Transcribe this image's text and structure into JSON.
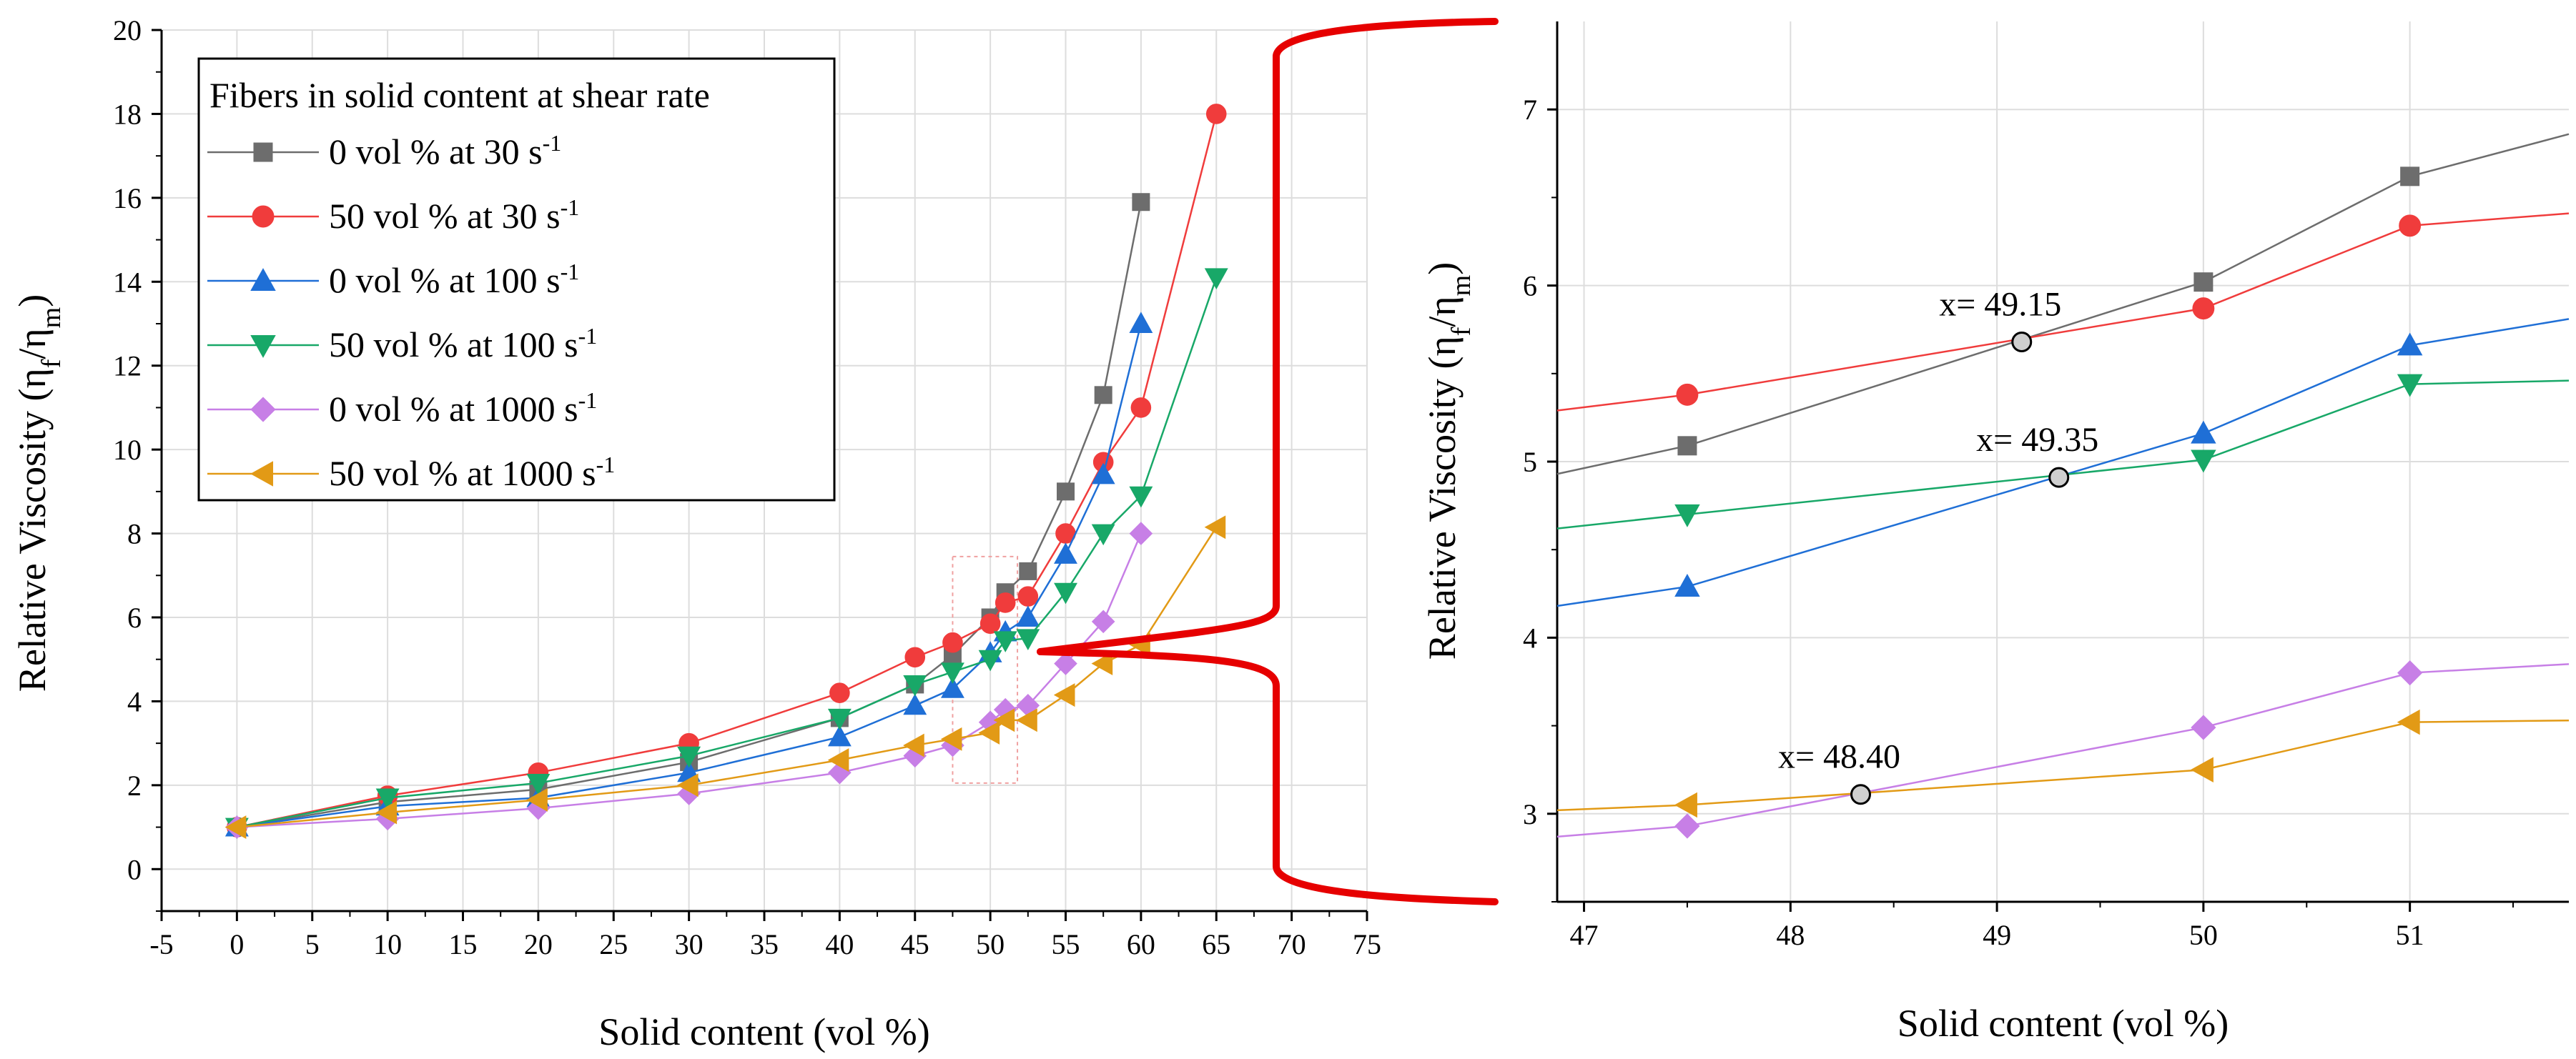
{
  "chart_data": [
    {
      "type": "line",
      "xlabel": "Solid content (vol %)",
      "ylabel": "Relative Viscosity (η_f/η_m)",
      "xlim": [
        -5,
        75
      ],
      "ylim": [
        -1,
        20
      ],
      "xticks": [
        -5,
        0,
        5,
        10,
        15,
        20,
        25,
        30,
        35,
        40,
        45,
        50,
        55,
        60,
        65,
        70,
        75
      ],
      "yticks": [
        0,
        2,
        4,
        6,
        8,
        10,
        12,
        14,
        16,
        18,
        20
      ],
      "grid": true,
      "legend": {
        "title": "Fibers in solid content at shear rate",
        "placement": "top-left"
      },
      "series": [
        {
          "key": "s0",
          "label": "0 vol % at 30 s",
          "sup": "-1",
          "color": "#6d6d6d",
          "marker": "square",
          "x": [
            0,
            10,
            20,
            30,
            40,
            45,
            47.5,
            50,
            51,
            52.5,
            55,
            57.5,
            60
          ],
          "y": [
            1.0,
            1.6,
            1.9,
            2.55,
            3.6,
            4.4,
            5.1,
            6.0,
            6.6,
            7.1,
            9.0,
            11.3,
            15.9
          ]
        },
        {
          "key": "s1",
          "label": "50 vol % at 30 s",
          "sup": "-1",
          "color": "#f03c3c",
          "marker": "circle",
          "x": [
            0,
            10,
            20,
            30,
            40,
            45,
            47.5,
            50,
            51,
            52.5,
            55,
            57.5,
            60,
            65
          ],
          "y": [
            1.0,
            1.75,
            2.3,
            3.0,
            4.2,
            5.05,
            5.4,
            5.85,
            6.35,
            6.5,
            8.0,
            9.7,
            11.0,
            18.0
          ]
        },
        {
          "key": "s2",
          "label": "0 vol % at 100 s",
          "sup": "-1",
          "color": "#1f6fd6",
          "marker": "triangle-up",
          "x": [
            0,
            10,
            20,
            30,
            40,
            45,
            47.5,
            50,
            51,
            52.5,
            55,
            57.5,
            60
          ],
          "y": [
            1.0,
            1.5,
            1.7,
            2.3,
            3.15,
            3.9,
            4.3,
            5.15,
            5.65,
            6.0,
            7.5,
            9.4,
            13.0
          ]
        },
        {
          "key": "s3",
          "label": "50 vol % at 100 s",
          "sup": "-1",
          "color": "#18a868",
          "marker": "triangle-down",
          "x": [
            0,
            10,
            20,
            30,
            40,
            45,
            47.5,
            50,
            51,
            52.5,
            55,
            57.5,
            60,
            65
          ],
          "y": [
            1.0,
            1.7,
            2.05,
            2.7,
            3.6,
            4.4,
            4.7,
            5.0,
            5.45,
            5.5,
            6.6,
            8.0,
            8.9,
            14.1
          ]
        },
        {
          "key": "s4",
          "label": "0 vol % at 1000 s",
          "sup": "-1",
          "color": "#c77fe6",
          "marker": "diamond",
          "x": [
            0,
            10,
            20,
            30,
            40,
            45,
            47.5,
            50,
            51,
            52.5,
            55,
            57.5,
            60
          ],
          "y": [
            1.0,
            1.2,
            1.45,
            1.8,
            2.3,
            2.7,
            2.95,
            3.5,
            3.8,
            3.9,
            4.9,
            5.9,
            8.0
          ]
        },
        {
          "key": "s5",
          "label": "50 vol % at 1000 s",
          "sup": "-1",
          "color": "#e29a16",
          "marker": "triangle-left",
          "x": [
            0,
            10,
            20,
            30,
            40,
            45,
            47.5,
            50,
            51,
            52.5,
            55,
            57.5,
            60,
            65
          ],
          "y": [
            1.0,
            1.35,
            1.65,
            2.0,
            2.6,
            2.95,
            3.1,
            3.25,
            3.55,
            3.55,
            4.15,
            4.9,
            5.35,
            8.15
          ]
        }
      ]
    },
    {
      "type": "line",
      "xlabel": "Solid content (vol %)",
      "ylabel": "Relative Viscosity (η_f/η_m)",
      "xlim": [
        46.87,
        51.77
      ],
      "ylim": [
        2.5,
        7.5
      ],
      "xticks": [
        47,
        48,
        49,
        50,
        51
      ],
      "yticks": [
        3,
        4,
        5,
        6,
        7
      ],
      "grid": true,
      "series": [
        {
          "key": "s0",
          "color": "#6d6d6d",
          "marker": "square",
          "x": [
            46.87,
            47.5,
            50,
            51,
            51.77
          ],
          "y": [
            4.93,
            5.09,
            6.02,
            6.62,
            6.86
          ]
        },
        {
          "key": "s1",
          "color": "#f03c3c",
          "marker": "circle",
          "x": [
            46.87,
            47.5,
            50,
            51,
            51.77
          ],
          "y": [
            5.29,
            5.38,
            5.87,
            6.34,
            6.41
          ]
        },
        {
          "key": "s2",
          "color": "#1f6fd6",
          "marker": "triangle-up",
          "x": [
            46.87,
            47.5,
            50,
            51,
            51.77
          ],
          "y": [
            4.18,
            4.29,
            5.16,
            5.66,
            5.81
          ]
        },
        {
          "key": "s3",
          "color": "#18a868",
          "marker": "triangle-down",
          "x": [
            46.87,
            47.5,
            50,
            51,
            51.77
          ],
          "y": [
            4.62,
            4.7,
            5.01,
            5.44,
            5.46
          ]
        },
        {
          "key": "s4",
          "color": "#c77fe6",
          "marker": "diamond",
          "x": [
            46.87,
            47.5,
            50,
            51,
            51.77
          ],
          "y": [
            2.87,
            2.93,
            3.49,
            3.8,
            3.85
          ]
        },
        {
          "key": "s5",
          "color": "#e29a16",
          "marker": "triangle-left",
          "x": [
            46.87,
            47.5,
            50,
            51,
            51.77
          ],
          "y": [
            3.02,
            3.05,
            3.25,
            3.52,
            3.53
          ]
        }
      ],
      "annotations": [
        {
          "text": "x= 49.15",
          "x": 49.12,
          "y": 5.68
        },
        {
          "text": "x= 49.35",
          "x": 49.3,
          "y": 4.91
        },
        {
          "text": "x= 48.40",
          "x": 48.34,
          "y": 3.11
        }
      ]
    }
  ]
}
